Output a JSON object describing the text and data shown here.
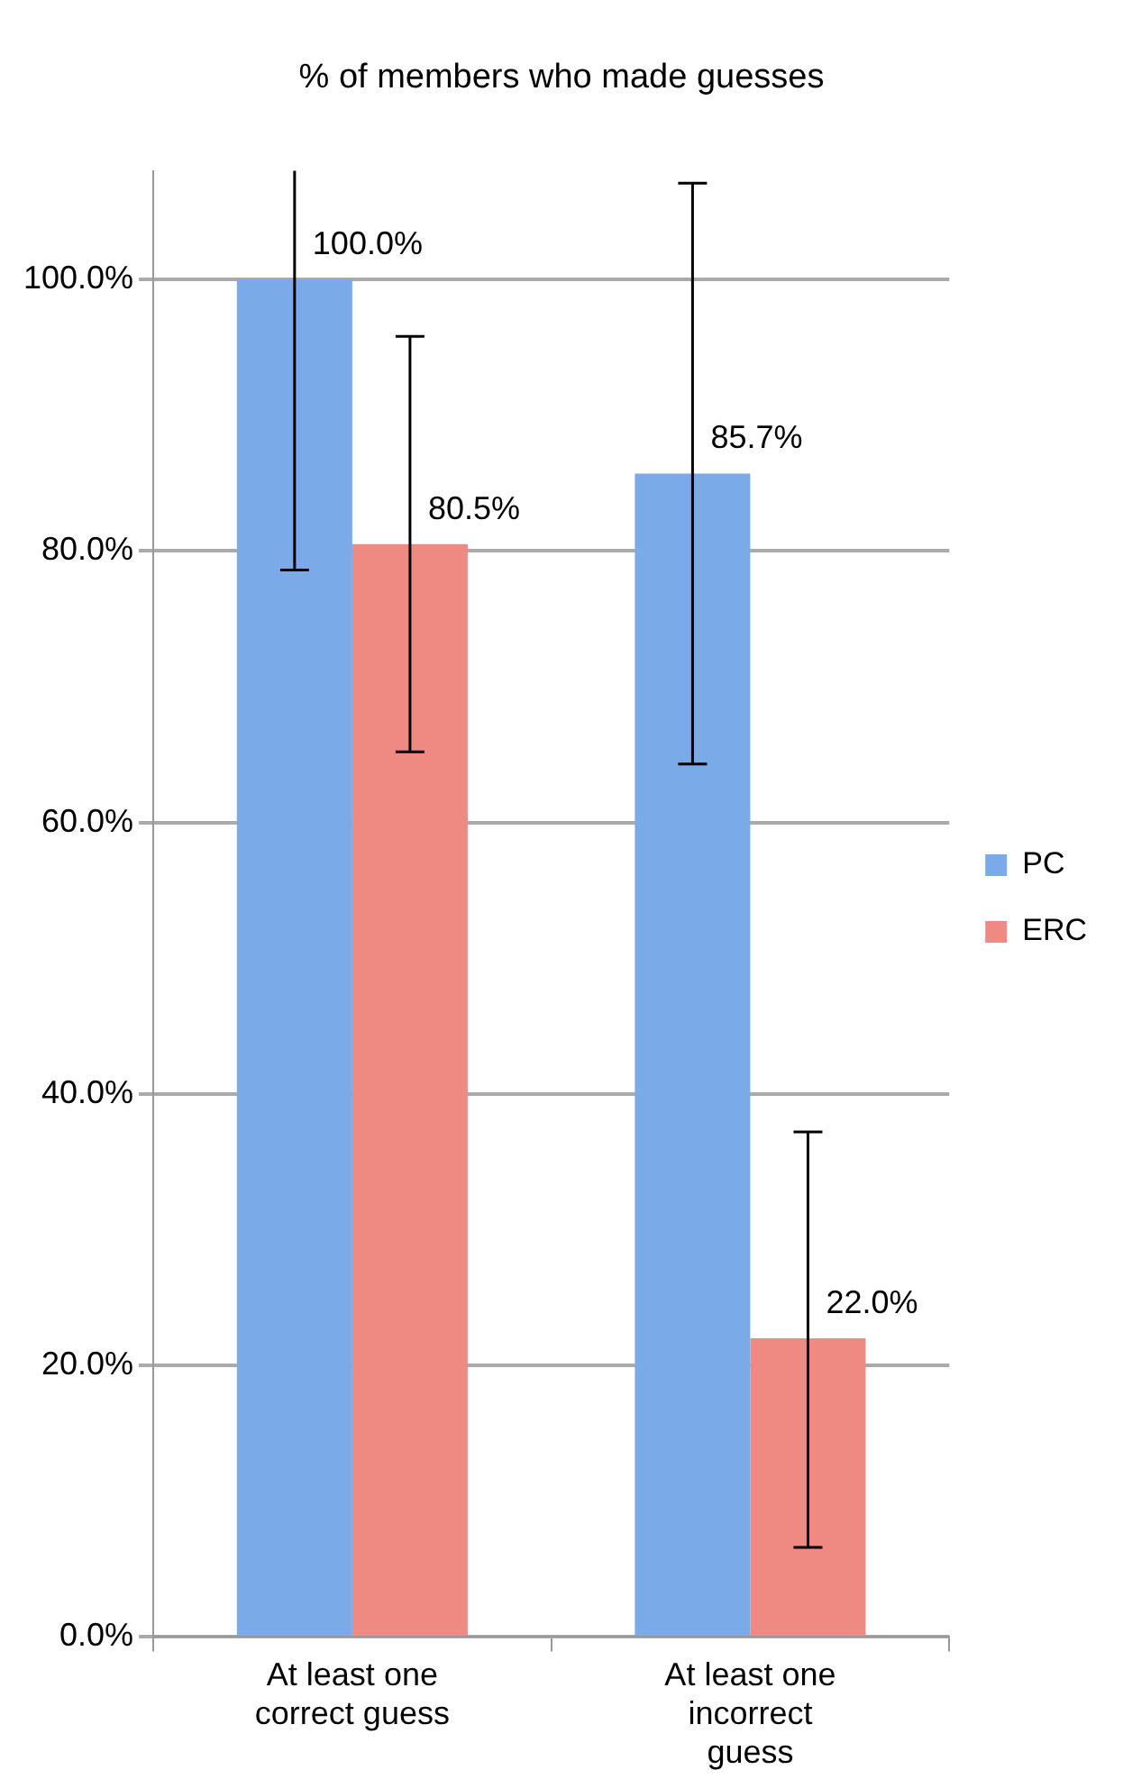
{
  "chart_data": {
    "type": "bar",
    "title": "% of members who made guesses",
    "categories": [
      "At least one correct guess",
      "At least one incorrect guess"
    ],
    "series": [
      {
        "name": "PC",
        "color": "#7aaae8",
        "values": [
          100.0,
          85.7
        ],
        "errors": [
          [
            78.6,
            108
          ],
          [
            64.3,
            107.1
          ]
        ]
      },
      {
        "name": "ERC",
        "color": "#ee8a82",
        "values": [
          80.5,
          22.0
        ],
        "errors": [
          [
            65.2,
            95.8
          ],
          [
            6.6,
            37.2
          ]
        ]
      }
    ],
    "ylim": [
      0,
      108
    ],
    "yticks": [
      {
        "value": 0,
        "label": "0.0%"
      },
      {
        "value": 20,
        "label": "20.0%"
      },
      {
        "value": 40,
        "label": "40.0%"
      },
      {
        "value": 60,
        "label": "60.0%"
      },
      {
        "value": 80,
        "label": "80.0%"
      },
      {
        "value": 100,
        "label": "100.0%"
      }
    ],
    "grid": "y",
    "legend": "right",
    "value_labels": [
      [
        "100.0%",
        "85.7%"
      ],
      [
        "80.5%",
        "22.0%"
      ]
    ]
  }
}
